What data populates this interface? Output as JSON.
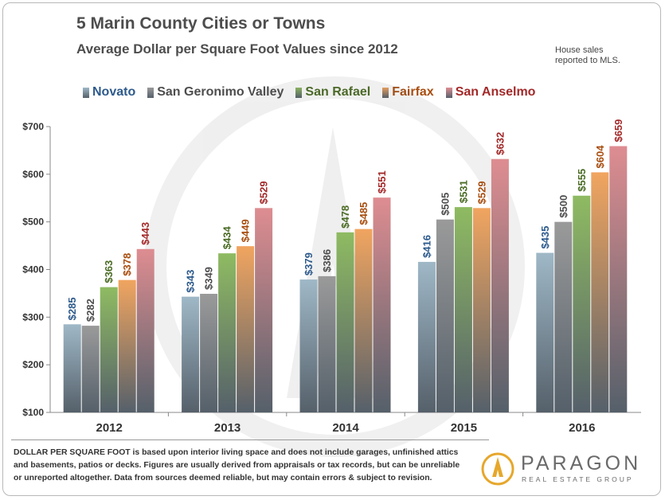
{
  "header": {
    "title": "5 Marin County Cities or Towns",
    "subtitle": "Average Dollar per Square Foot Values since 2012",
    "side_note_line1": "House sales",
    "side_note_line2": "reported to MLS."
  },
  "chart_data": {
    "type": "bar",
    "title": "5 Marin County Cities or Towns",
    "subtitle": "Average Dollar per Square Foot Values since 2012",
    "categories": [
      "2012",
      "2013",
      "2014",
      "2015",
      "2016"
    ],
    "series": [
      {
        "name": "Novato",
        "values": [
          285,
          343,
          379,
          416,
          435
        ],
        "color": "#9fb8c7",
        "label_color": "#2d5a8c"
      },
      {
        "name": "San Geronimo Valley",
        "values": [
          282,
          349,
          386,
          505,
          500
        ],
        "color": "#9a9a9a",
        "label_color": "#4d4d4d"
      },
      {
        "name": "San Rafael",
        "values": [
          363,
          434,
          478,
          531,
          555
        ],
        "color": "#8fbb62",
        "label_color": "#4a6b24"
      },
      {
        "name": "Fairfax",
        "values": [
          378,
          449,
          485,
          529,
          604
        ],
        "color": "#f1a560",
        "label_color": "#a84d0f"
      },
      {
        "name": "San Anselmo",
        "values": [
          443,
          529,
          551,
          632,
          659
        ],
        "color": "#de8d91",
        "label_color": "#a32929"
      }
    ],
    "value_labels": [
      [
        "$285",
        "$343",
        "$379",
        "$416",
        "$435"
      ],
      [
        "$282",
        "$349",
        "$386",
        "$505",
        "$500"
      ],
      [
        "$363",
        "$434",
        "$478",
        "$531",
        "$555"
      ],
      [
        "$378",
        "$449",
        "$485",
        "$529",
        "$604"
      ],
      [
        "$443",
        "$529",
        "$551",
        "$632",
        "$659"
      ]
    ],
    "y_ticks": [
      100,
      200,
      300,
      400,
      500,
      600,
      700
    ],
    "y_tick_labels": [
      "$100",
      "$200",
      "$300",
      "$400",
      "$500",
      "$600",
      "$700"
    ],
    "ylim": [
      100,
      700
    ],
    "xlabel": "",
    "ylabel": "",
    "grid": false,
    "legend_position": "top"
  },
  "footnote": {
    "line1_lead": "DOLLAR PER SQUARE FOOT",
    "line1_rest": " is based upon interior living space and does not include garages, unfinished attics",
    "line2": "and basements, patios or decks. Figures are usually derived from appraisals or tax records, but can be unreliable",
    "line3": "or unreported altogether. Data from sources deemed reliable, but may contain errors & subject to revision."
  },
  "logo": {
    "name": "PARAGON",
    "tagline": "REAL ESTATE GROUP"
  }
}
